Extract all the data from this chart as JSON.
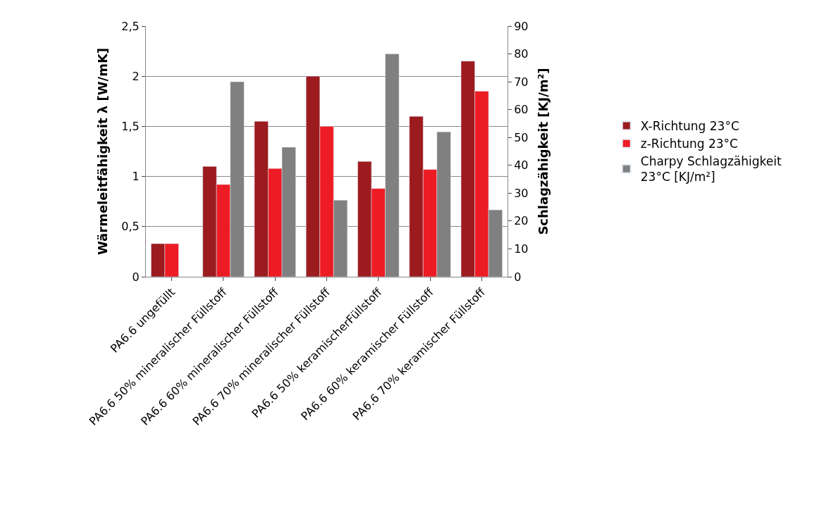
{
  "chart_data": {
    "type": "bar",
    "ylabel": "Wärmeleitfähigkeit λ [W/mK]",
    "y2label": "Schlagzähigkeit [KJ/m²]",
    "categories": [
      "PA6.6 ungefüllt",
      "PA6.6 50% mineralischer Füllstoff",
      "PA6.6 60% mineralischer Füllstoff",
      "PA6.6 70% mineralischer Füllstoff",
      "PA6.6 50% keramischerFüllstoff",
      "PA6.6 60% keramischer Füllstoff",
      "PA6.6 70% keramischer Füllstoff"
    ],
    "series": [
      {
        "name": "X-Richtung 23°C",
        "color": "#9b1b1f",
        "values": [
          0.33,
          1.1,
          1.55,
          2.0,
          1.15,
          1.6,
          2.15
        ]
      },
      {
        "name": "z-Richtung 23°C",
        "color": "#ed1c24",
        "values": [
          0.33,
          0.92,
          1.08,
          1.5,
          0.88,
          1.07,
          1.85
        ]
      },
      {
        "name": "Charpy Schlagzähigkeit 23°C [KJ/m²]",
        "color": "#808080",
        "axis": "y2",
        "values": [
          null,
          70,
          46.5,
          27.5,
          80,
          52,
          24
        ]
      }
    ],
    "ylim": [
      0,
      2.5
    ],
    "yticks": [
      0,
      {
        "value": 0.5,
        "label": "0,5"
      },
      1,
      {
        "value": 1.5,
        "label": "1,5"
      },
      2,
      {
        "value": 2.5,
        "label": "2,5"
      }
    ],
    "y2lim": [
      0,
      90
    ],
    "y2ticks": [
      0,
      10,
      20,
      30,
      40,
      50,
      60,
      70,
      80,
      90
    ],
    "grid": "y",
    "legend": "right"
  }
}
